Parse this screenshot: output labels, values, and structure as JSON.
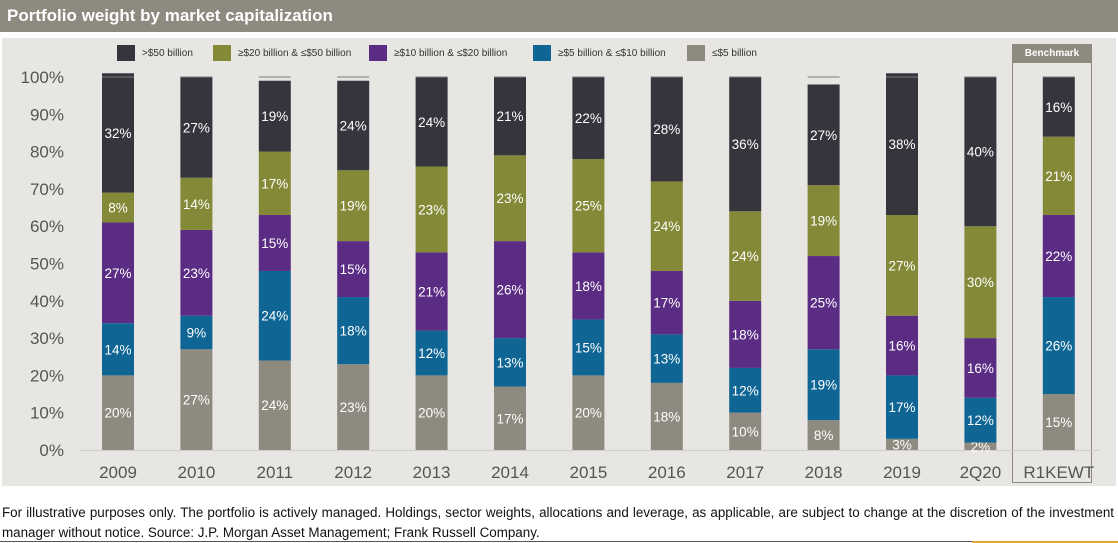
{
  "header": {
    "title": "Portfolio weight by market capitalization"
  },
  "benchmark_label": "Benchmark",
  "colors": {
    "title_bar": "#8f8a80",
    "background": "#e8e6e3",
    "gt50": "#36353d",
    "20to50": "#848938",
    "10to20": "#5b2c84",
    "5to10": "#0f6694",
    "lt5": "#8f8a80"
  },
  "chart_data": {
    "type": "bar",
    "stacked": true,
    "title": "Portfolio weight by market capitalization",
    "xlabel": "",
    "ylabel": "",
    "ylim": [
      0,
      100
    ],
    "yticks": [
      "0%",
      "10%",
      "20%",
      "30%",
      "40%",
      "50%",
      "60%",
      "70%",
      "80%",
      "90%",
      "100%"
    ],
    "grid": false,
    "legend_position": "top",
    "categories": [
      "2009",
      "2010",
      "2011",
      "2012",
      "2013",
      "2014",
      "2015",
      "2016",
      "2017",
      "2018",
      "2019",
      "2Q20",
      "R1KEWT"
    ],
    "benchmark_category": "R1KEWT",
    "series": [
      {
        "name": "≤$5 billion",
        "key": "lt5",
        "values": [
          20,
          27,
          24,
          23,
          20,
          17,
          20,
          18,
          10,
          8,
          3,
          2,
          15
        ]
      },
      {
        "name": "≥$5 billion & ≤$10 billion",
        "key": "5to10",
        "values": [
          14,
          9,
          24,
          18,
          12,
          13,
          15,
          13,
          12,
          19,
          17,
          12,
          26
        ]
      },
      {
        "name": "≥$10 billion & ≤$20 billion",
        "key": "10to20",
        "values": [
          27,
          23,
          15,
          15,
          21,
          26,
          18,
          17,
          18,
          25,
          16,
          16,
          22
        ]
      },
      {
        "name": "≥$20 billion & ≤$50 billion",
        "key": "20to50",
        "values": [
          8,
          14,
          17,
          19,
          23,
          23,
          25,
          24,
          24,
          19,
          27,
          30,
          21
        ]
      },
      {
        "name": ">$50 billion",
        "key": "gt50",
        "values": [
          32,
          27,
          19,
          24,
          24,
          21,
          22,
          28,
          36,
          27,
          38,
          40,
          16
        ]
      }
    ],
    "legend_order": [
      ">$50 billion",
      "≥$20 billion & ≤$50 billion",
      "≥$10 billion & ≤$20 billion",
      "≥$5 billion & ≤$10 billion",
      "≤$5 billion"
    ]
  },
  "footer": {
    "text": "For illustrative purposes only. The portfolio is actively managed. Holdings, sector weights, allocations and leverage, as applicable, are subject to change at the discretion of the investment manager without notice. Source: J.P. Morgan Asset Management; Frank Russell Company."
  }
}
